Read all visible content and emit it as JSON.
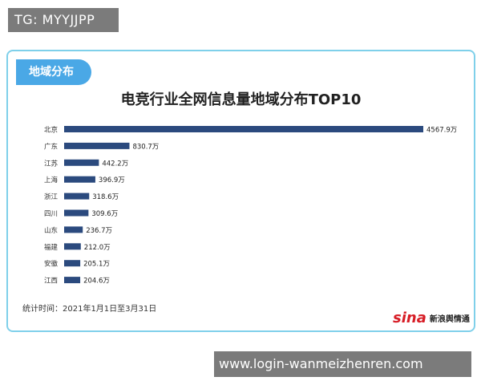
{
  "watermark_top": "TG: MYYJJPP",
  "watermark_bottom": "www.login-wanmeizhenren.com",
  "section_label": "地域分布",
  "footnote": "统计时间：2021年1月1日至3月31日",
  "brand": {
    "logo": "sina",
    "name": "新浪舆情通"
  },
  "colors": {
    "bar": "#2b4a7e",
    "accent": "#4aa8e6",
    "border": "#7fd0ea"
  },
  "chart_data": {
    "type": "bar",
    "orientation": "horizontal",
    "title": "电竞行业全网信息量地域分布TOP10",
    "categories": [
      "北京",
      "广东",
      "江苏",
      "上海",
      "浙江",
      "四川",
      "山东",
      "福建",
      "安徽",
      "江西"
    ],
    "values": [
      4567.9,
      830.7,
      442.2,
      396.9,
      318.6,
      309.6,
      236.7,
      212.0,
      205.1,
      204.6
    ],
    "value_labels": [
      "4567.9万",
      "830.7万",
      "442.2万",
      "396.9万",
      "318.6万",
      "309.6万",
      "236.7万",
      "212.0万",
      "205.1万",
      "204.6万"
    ],
    "xlim": [
      0,
      4567.9
    ],
    "grid": false
  }
}
